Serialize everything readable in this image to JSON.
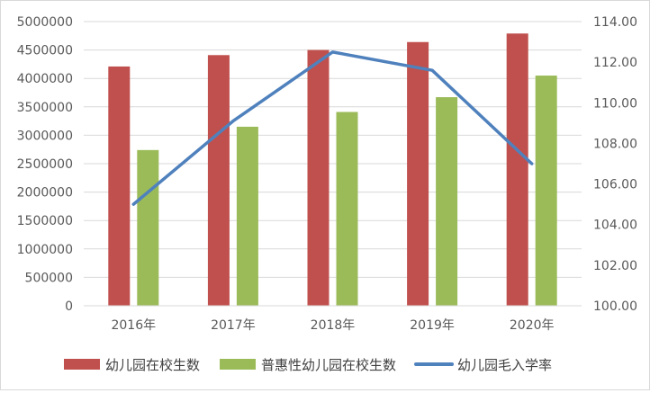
{
  "chart_data": {
    "type": "bar",
    "categories": [
      "2016年",
      "2017年",
      "2018年",
      "2019年",
      "2020年"
    ],
    "series": [
      {
        "name": "幼儿园在校生数",
        "type": "bar",
        "axis": "left",
        "color": "#C0504D",
        "values": [
          4210000,
          4410000,
          4500000,
          4640000,
          4790000
        ]
      },
      {
        "name": "普惠性幼儿园在校生数",
        "type": "bar",
        "axis": "left",
        "color": "#9BBB59",
        "values": [
          2740000,
          3150000,
          3410000,
          3670000,
          4050000
        ]
      },
      {
        "name": "幼儿园毛入学率",
        "type": "line",
        "axis": "right",
        "color": "#4F81BD",
        "values": [
          105.0,
          109.1,
          112.5,
          111.6,
          107.0
        ]
      }
    ],
    "ylim": [
      0,
      5000000
    ],
    "yticks": [
      "0",
      "500000",
      "1000000",
      "1500000",
      "2000000",
      "2500000",
      "3000000",
      "3500000",
      "4000000",
      "4500000",
      "5000000"
    ],
    "y2lim": [
      100,
      114
    ],
    "y2ticks": [
      "100.00",
      "102.00",
      "104.00",
      "106.00",
      "108.00",
      "110.00",
      "112.00",
      "114.00"
    ],
    "grid": true,
    "legend": "bottom"
  }
}
